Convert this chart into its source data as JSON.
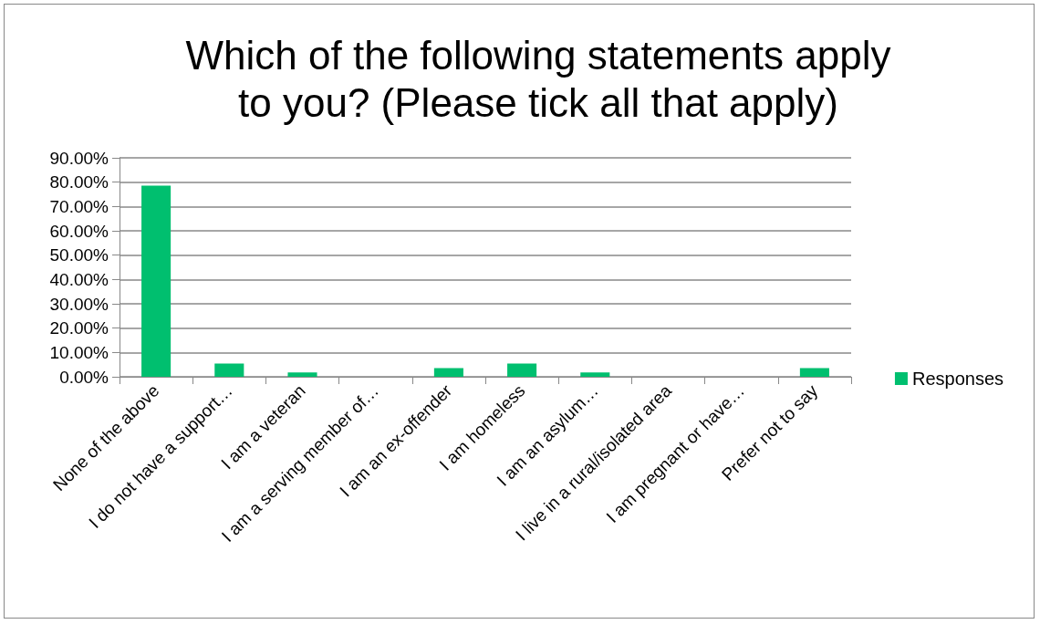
{
  "chart_data": {
    "type": "bar",
    "title": "Which of the following statements apply\nto you? (Please tick all that apply)",
    "categories": [
      "None of the above",
      "I do not have a support…",
      "I am a veteran",
      "I am a serving member of…",
      "I am an ex-offender",
      "I am homeless",
      "I am an asylum…",
      "I live in a rural/isolated area",
      "I am pregnant or have…",
      "Prefer not to say"
    ],
    "series": [
      {
        "name": "Responses",
        "color": "#00bf6f",
        "values": [
          78.6,
          5.4,
          1.8,
          0,
          3.6,
          5.4,
          1.8,
          0,
          0,
          3.6
        ]
      }
    ],
    "ylim": [
      0,
      90
    ],
    "yticks": [
      {
        "value": 0,
        "label": "0.00%"
      },
      {
        "value": 10,
        "label": "10.00%"
      },
      {
        "value": 20,
        "label": "20.00%"
      },
      {
        "value": 30,
        "label": "30.00%"
      },
      {
        "value": 40,
        "label": "40.00%"
      },
      {
        "value": 50,
        "label": "50.00%"
      },
      {
        "value": 60,
        "label": "60.00%"
      },
      {
        "value": 70,
        "label": "70.00%"
      },
      {
        "value": 80,
        "label": "80.00%"
      },
      {
        "value": 90,
        "label": "90.00%"
      }
    ],
    "grid": "y",
    "legend": "right"
  }
}
